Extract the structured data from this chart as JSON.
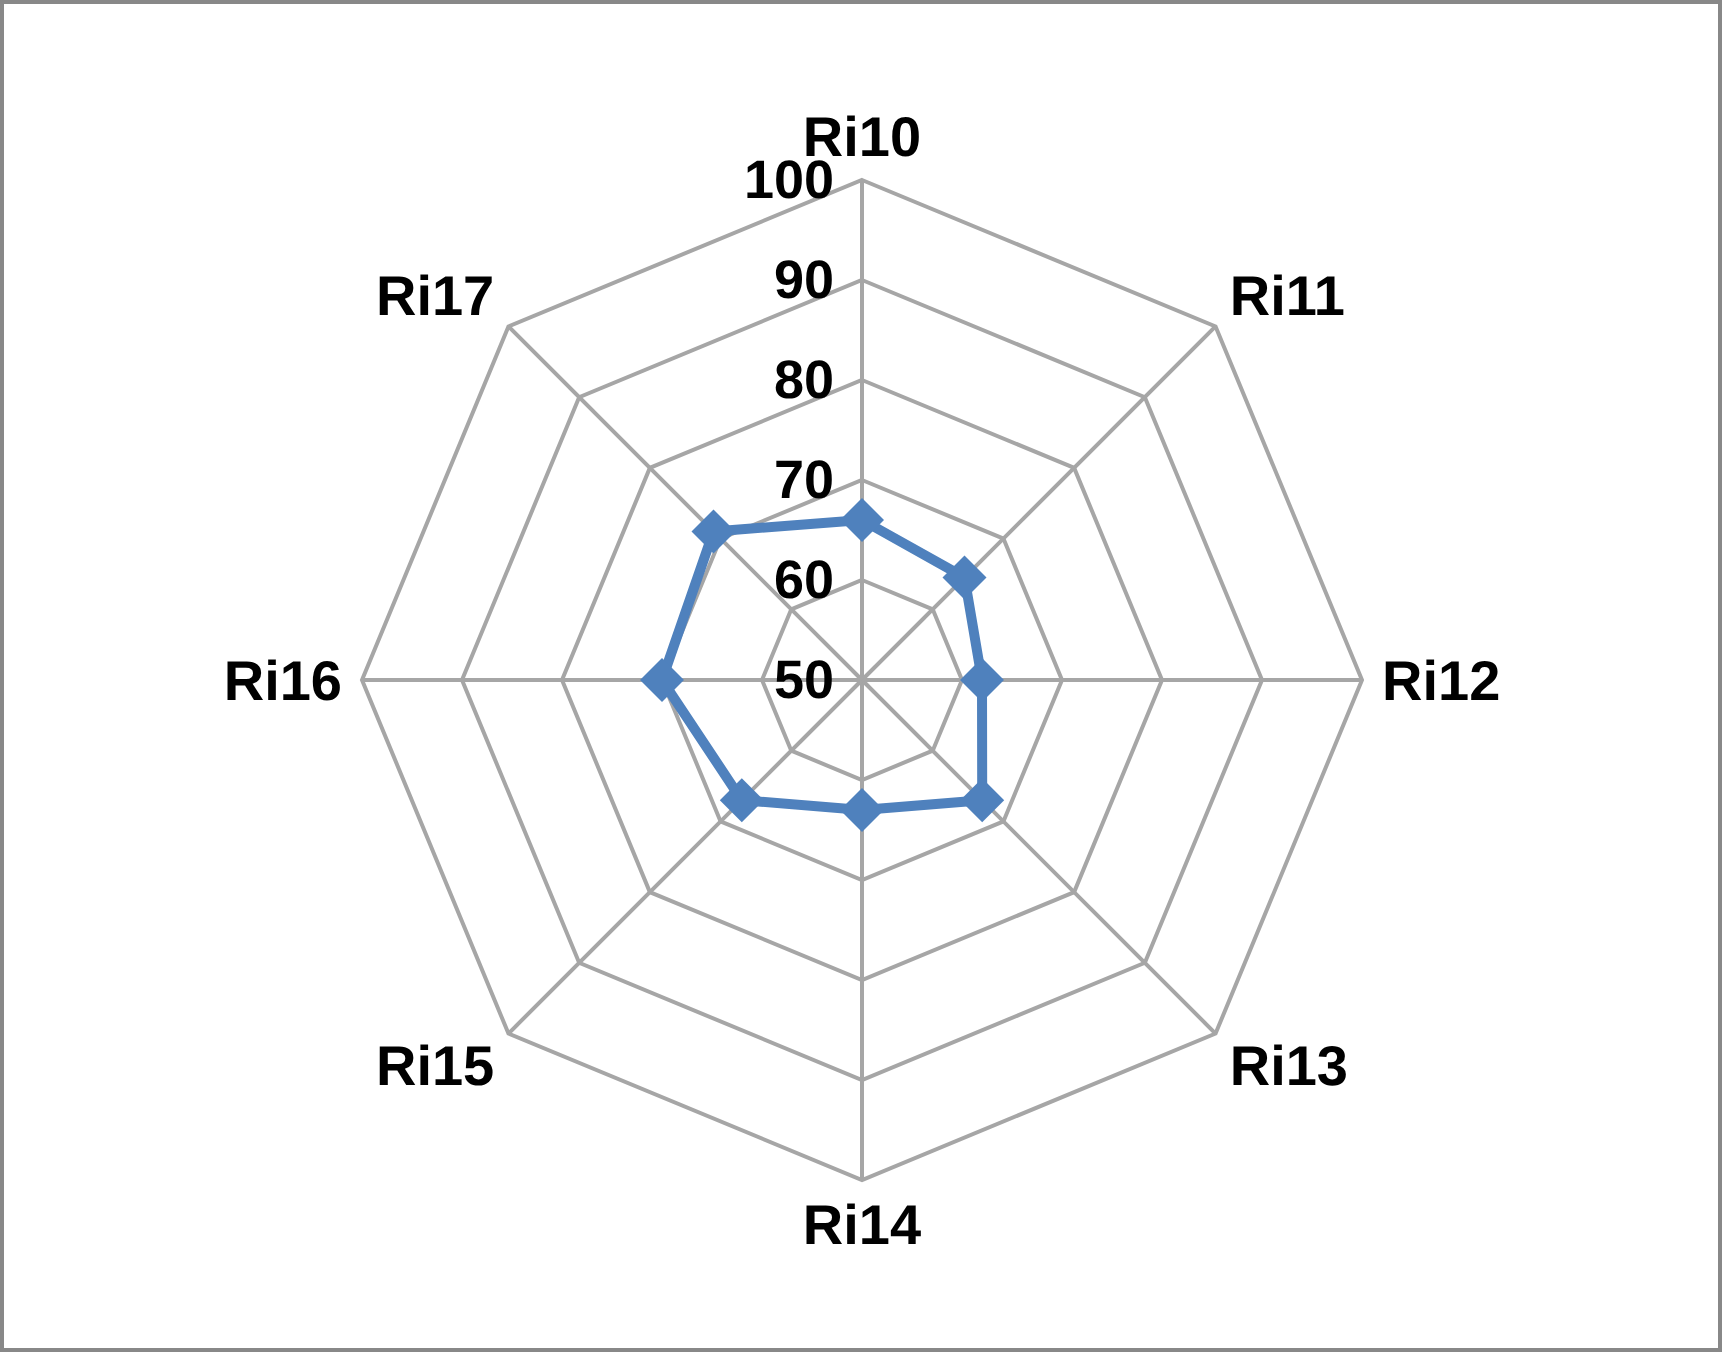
{
  "chart_data": {
    "type": "radar",
    "categories": [
      "Ri10",
      "Ri11",
      "Ri12",
      "Ri13",
      "Ri14",
      "Ri15",
      "Ri16",
      "Ri17"
    ],
    "series": [
      {
        "color": "#4f81bd",
        "values": [
          66,
          64.5,
          62,
          67,
          63,
          67,
          70,
          71
        ]
      }
    ],
    "ylim": [
      50,
      100
    ],
    "yticks": [
      50,
      60,
      70,
      80,
      90,
      100
    ],
    "grid": true,
    "marker": "diamond",
    "line_style": "solid"
  }
}
